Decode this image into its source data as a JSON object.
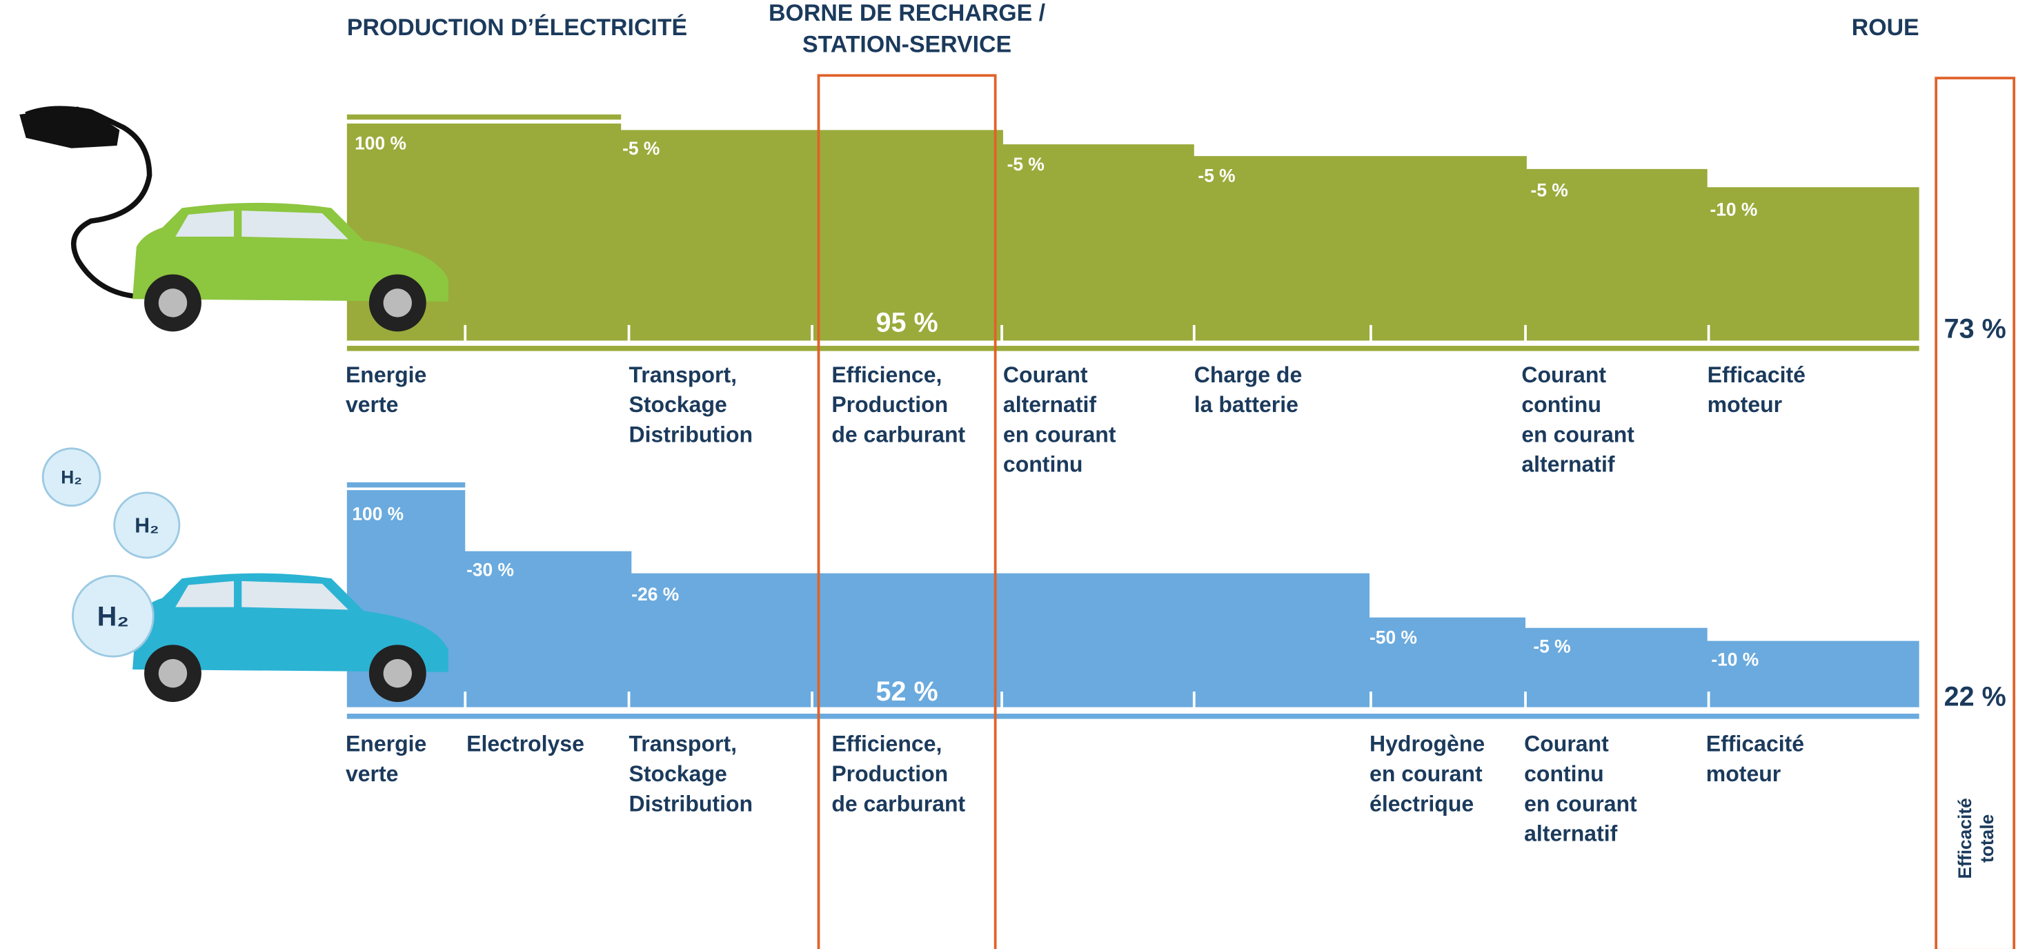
{
  "header": {
    "left": "PRODUCTION D’ÉLECTRICITÉ",
    "middle": [
      "BORNE DE RECHARGE /",
      "STATION-SERVICE"
    ],
    "right": "ROUE"
  },
  "bubbles": [
    "H₂",
    "H₂",
    "H₂"
  ],
  "total_label": [
    "Efficacité",
    "totale"
  ],
  "rows": [
    {
      "total": "73 %",
      "station": "95 %",
      "percents": [
        "100 %",
        "-5 %",
        "-5 %",
        "-5 %",
        "-5 %",
        "-10 %"
      ],
      "steps": [
        [
          "Energie",
          "verte"
        ],
        [
          "Transport,",
          "Stockage",
          "Distribution"
        ],
        [
          "Efficience,",
          "Production",
          "de carburant"
        ],
        [
          "Courant",
          "alternatif",
          "en courant",
          "continu"
        ],
        [
          "Charge de",
          "la batterie"
        ],
        [
          "Courant",
          "continu",
          "en courant",
          "alternatif"
        ],
        [
          "Efficacité",
          "moteur"
        ]
      ]
    },
    {
      "total": "22 %",
      "station": "52 %",
      "percents": [
        "100 %",
        "-30 %",
        "-26 %",
        "-50 %",
        "-5 %",
        "-10 %"
      ],
      "steps": [
        [
          "Energie",
          "verte"
        ],
        [
          "Electrolyse"
        ],
        [
          "Transport,",
          "Stockage",
          "Distribution"
        ],
        [
          "Efficience,",
          "Production",
          "de carburant"
        ],
        [
          "Hydrogène",
          "en courant",
          "électrique"
        ],
        [
          "Courant",
          "continu",
          "en courant",
          "alternatif"
        ],
        [
          "Efficacité",
          "moteur"
        ]
      ]
    }
  ]
}
